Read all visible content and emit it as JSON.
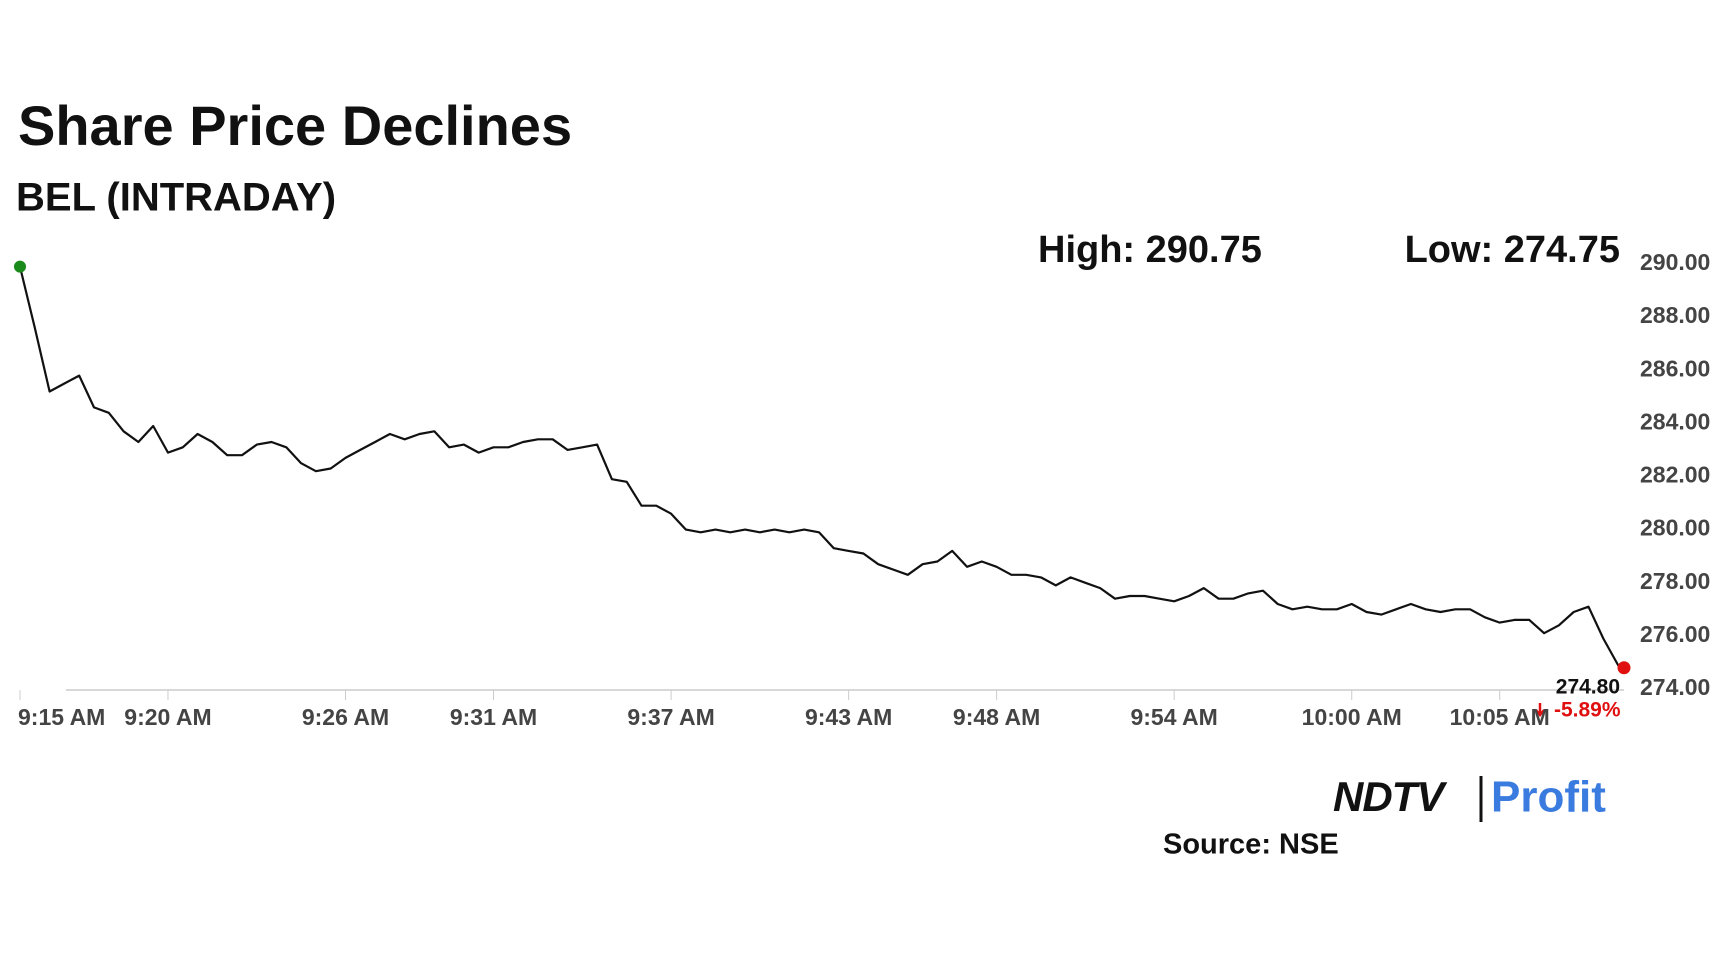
{
  "chart_data": {
    "type": "line",
    "title": "Share Price Declines",
    "subtitle": "BEL (INTRADAY)",
    "high_label": "High: 290.75",
    "low_label": "Low: 274.75",
    "change_label": "-5.89%",
    "source": "Source: NSE",
    "logo": [
      "NDTV",
      "Profit"
    ],
    "color": "#111111",
    "start_color": "#1a8a1a",
    "end_color": "#e01010",
    "grid": false,
    "x": [
      555,
      555.5,
      556,
      556.5,
      557,
      557.5,
      558,
      558.5,
      559,
      559.5,
      560,
      560.5,
      561,
      561.5,
      562,
      562.5,
      563,
      563.5,
      564,
      564.5,
      565,
      565.5,
      566,
      566.5,
      567,
      567.5,
      568,
      568.5,
      569,
      569.5,
      570,
      570.5,
      571,
      571.5,
      572,
      572.5,
      573,
      573.5,
      574,
      574.5,
      575,
      575.5,
      576,
      576.5,
      577,
      577.5,
      578,
      578.5,
      579,
      579.5,
      580,
      580.5,
      581,
      581.5,
      582,
      582.5,
      583,
      583.5,
      584,
      584.5,
      585,
      585.5,
      586,
      586.5,
      587,
      587.5,
      588,
      588.5,
      589,
      589.5,
      590,
      590.5,
      591,
      591.5,
      592,
      592.5,
      593,
      593.5,
      594,
      594.5,
      595,
      595.5,
      596,
      596.5,
      597,
      597.5,
      598,
      598.5,
      599,
      599.5,
      600,
      600.5,
      601,
      601.5,
      602,
      602.5,
      603,
      603.5,
      604,
      604.5,
      605,
      605.5,
      606,
      606.5,
      607,
      607.5,
      608,
      608.5,
      609,
      609.2
    ],
    "values": [
      289.9,
      287.6,
      285.2,
      285.5,
      285.8,
      284.6,
      284.4,
      283.7,
      283.3,
      283.9,
      282.9,
      283.1,
      283.6,
      283.3,
      282.8,
      282.8,
      283.2,
      283.3,
      283.1,
      282.5,
      282.2,
      282.3,
      282.7,
      283.0,
      283.3,
      283.6,
      283.4,
      283.6,
      283.7,
      283.1,
      283.2,
      282.9,
      283.1,
      283.1,
      283.3,
      283.4,
      283.4,
      283.0,
      283.1,
      283.2,
      281.9,
      281.8,
      280.9,
      280.9,
      280.6,
      280.0,
      279.9,
      280.0,
      279.9,
      280.0,
      279.9,
      280.0,
      279.9,
      280.0,
      279.9,
      279.3,
      279.2,
      279.1,
      278.7,
      278.5,
      278.3,
      278.7,
      278.8,
      279.2,
      278.6,
      278.8,
      278.6,
      278.3,
      278.3,
      278.2,
      277.9,
      278.2,
      278.0,
      277.8,
      277.4,
      277.5,
      277.5,
      277.4,
      277.3,
      277.5,
      277.8,
      277.4,
      277.4,
      277.6,
      277.7,
      277.2,
      277.0,
      277.1,
      277.0,
      277.0,
      277.2,
      276.9,
      276.8,
      277.0,
      277.2,
      277.0,
      276.9,
      277.0,
      277.0,
      276.7,
      276.5,
      276.6,
      276.6,
      276.1,
      276.4,
      276.9,
      277.1,
      275.9,
      274.9,
      274.8
    ],
    "value_labels": [
      null,
      null,
      null,
      null,
      null,
      null,
      null,
      null,
      null,
      null,
      null,
      null,
      null,
      null,
      null,
      null,
      null,
      null,
      null,
      null,
      null,
      null,
      null,
      null,
      null,
      null,
      null,
      null,
      null,
      null,
      null,
      null,
      null,
      null,
      null,
      null,
      null,
      null,
      null,
      null,
      null,
      null,
      null,
      null,
      null,
      null,
      null,
      null,
      null,
      null,
      null,
      null,
      null,
      null,
      null,
      null,
      null,
      null,
      null,
      null,
      null,
      null,
      null,
      null,
      null,
      null,
      null,
      null,
      null,
      null,
      null,
      null,
      null,
      null,
      null,
      null,
      null,
      null,
      null,
      null,
      null,
      null,
      null,
      null,
      null,
      null,
      null,
      null,
      null,
      null,
      null,
      null,
      null,
      null,
      null,
      null,
      null,
      null,
      null,
      null,
      null,
      null,
      null,
      null,
      null,
      null,
      null,
      null,
      null,
      "274.80"
    ],
    "xlim": [
      555,
      609.2
    ],
    "xticks": [
      {
        "value": 555,
        "label": "9:15 AM"
      },
      {
        "value": 560,
        "label": "9:20 AM"
      },
      {
        "value": 566,
        "label": "9:26 AM"
      },
      {
        "value": 571,
        "label": "9:31 AM"
      },
      {
        "value": 577,
        "label": "9:37 AM"
      },
      {
        "value": 583,
        "label": "9:43 AM"
      },
      {
        "value": 588,
        "label": "9:48 AM"
      },
      {
        "value": 594,
        "label": "9:54 AM"
      },
      {
        "value": 600,
        "label": "10:00 AM"
      },
      {
        "value": 605,
        "label": "10:05 AM"
      }
    ],
    "ylim": [
      274,
      290
    ],
    "yticks": [
      {
        "value": 274,
        "label": "274.00"
      },
      {
        "value": 276,
        "label": "276.00"
      },
      {
        "value": 278,
        "label": "278.00"
      },
      {
        "value": 280,
        "label": "280.00"
      },
      {
        "value": 282,
        "label": "282.00"
      },
      {
        "value": 284,
        "label": "284.00"
      },
      {
        "value": 286,
        "label": "286.00"
      },
      {
        "value": 288,
        "label": "288.00"
      },
      {
        "value": 290,
        "label": "290.00"
      }
    ]
  }
}
